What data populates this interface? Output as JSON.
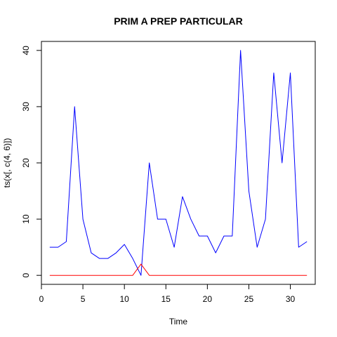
{
  "chart_data": {
    "type": "line",
    "title": "PRIM A PREP PARTICULAR",
    "xlabel": "Time",
    "ylabel": "ts(x[, c(4, 6)])",
    "xlim": [
      0,
      33
    ],
    "ylim": [
      -1.6,
      41.6
    ],
    "x_ticks": [
      0,
      5,
      10,
      15,
      20,
      25,
      30
    ],
    "y_ticks": [
      0,
      10,
      20,
      30,
      40
    ],
    "grid": false,
    "legend": "none",
    "x": [
      1,
      2,
      3,
      4,
      5,
      6,
      7,
      8,
      9,
      10,
      11,
      12,
      13,
      14,
      15,
      16,
      17,
      18,
      19,
      20,
      21,
      22,
      23,
      24,
      25,
      26,
      27,
      28,
      29,
      30,
      31,
      32
    ],
    "series": [
      {
        "color": "#0000ff",
        "values": [
          5,
          5,
          6,
          30,
          10,
          4,
          3,
          3,
          4,
          5.5,
          3,
          0,
          20,
          10,
          10,
          5,
          14,
          10,
          7,
          7,
          4,
          7,
          7,
          40,
          15,
          5,
          10,
          36,
          20,
          36,
          5,
          6
        ]
      },
      {
        "color": "#ff0000",
        "values": [
          0,
          0,
          0,
          0,
          0,
          0,
          0,
          0,
          0,
          0,
          0,
          2,
          0,
          0,
          0,
          0,
          0,
          0,
          0,
          0,
          0,
          0,
          0,
          0,
          0,
          0,
          0,
          0,
          0,
          0,
          0,
          0
        ]
      }
    ]
  }
}
